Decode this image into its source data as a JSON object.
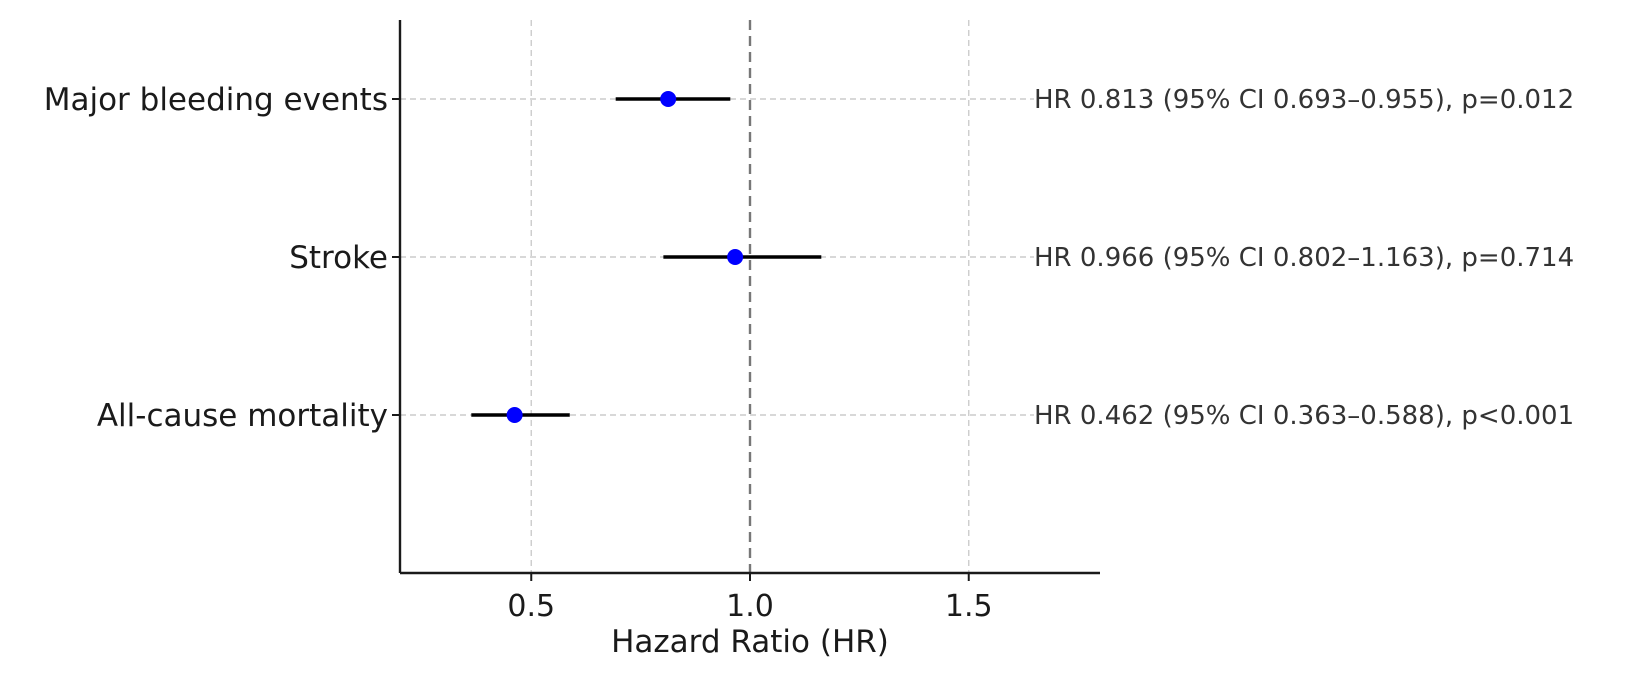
{
  "chart_data": {
    "type": "scatter",
    "subtype": "forest-plot",
    "xlabel": "Hazard Ratio (HR)",
    "xlim": [
      0.2,
      1.8
    ],
    "xticks": [
      0.5,
      1.0,
      1.5
    ],
    "xtick_labels": [
      "0.5",
      "1.0",
      "1.5"
    ],
    "reference_line": 1.0,
    "grid": true,
    "point_color": "#0000ff",
    "ci_color": "#000000",
    "rows": [
      {
        "label": "Major bleeding events",
        "hr": 0.813,
        "ci_low": 0.693,
        "ci_high": 0.955,
        "annotation": "HR 0.813 (95% CI 0.693–0.955), p=0.012"
      },
      {
        "label": "Stroke",
        "hr": 0.966,
        "ci_low": 0.802,
        "ci_high": 1.163,
        "annotation": "HR 0.966 (95% CI 0.802–1.163), p=0.714"
      },
      {
        "label": "All-cause mortality",
        "hr": 0.462,
        "ci_low": 0.363,
        "ci_high": 0.588,
        "annotation": "HR 0.462 (95% CI 0.363–0.588), p<0.001"
      }
    ]
  }
}
